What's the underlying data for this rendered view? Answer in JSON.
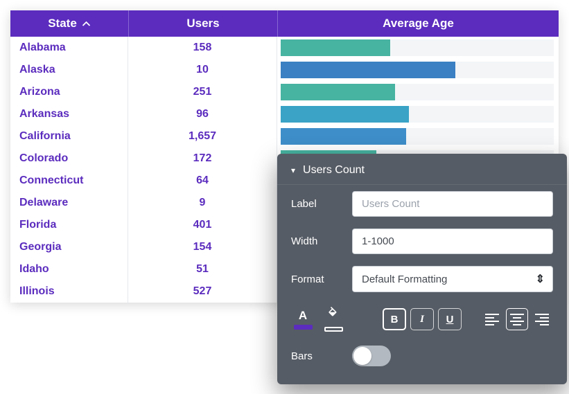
{
  "table": {
    "columns": [
      {
        "label": "State",
        "sorted": "asc"
      },
      {
        "label": "Users"
      },
      {
        "label": "Average Age"
      }
    ],
    "rows": [
      {
        "state": "Alabama",
        "users": "158",
        "bar_pct": 40,
        "bar_color": "#47b3a1"
      },
      {
        "state": "Alaska",
        "users": "10",
        "bar_pct": 64,
        "bar_color": "#3a80c3"
      },
      {
        "state": "Arizona",
        "users": "251",
        "bar_pct": 42,
        "bar_color": "#47b3a1"
      },
      {
        "state": "Arkansas",
        "users": "96",
        "bar_pct": 47,
        "bar_color": "#3aa3c6"
      },
      {
        "state": "California",
        "users": "1,657",
        "bar_pct": 46,
        "bar_color": "#3e8ec9"
      },
      {
        "state": "Colorado",
        "users": "172",
        "bar_pct": 35,
        "bar_color": "#47b3a1"
      },
      {
        "state": "Connecticut",
        "users": "64",
        "bar_pct": null,
        "bar_color": null
      },
      {
        "state": "Delaware",
        "users": "9",
        "bar_pct": null,
        "bar_color": null
      },
      {
        "state": "Florida",
        "users": "401",
        "bar_pct": null,
        "bar_color": null
      },
      {
        "state": "Georgia",
        "users": "154",
        "bar_pct": null,
        "bar_color": null
      },
      {
        "state": "Idaho",
        "users": "51",
        "bar_pct": null,
        "bar_color": null
      },
      {
        "state": "Illinois",
        "users": "527",
        "bar_pct": null,
        "bar_color": null
      }
    ]
  },
  "panel": {
    "title": "Users Count",
    "collapse_caret": "▾",
    "label_field": {
      "label": "Label",
      "placeholder": "Users Count"
    },
    "width_field": {
      "label": "Width",
      "value": "1-1000"
    },
    "format_field": {
      "label": "Format",
      "value": "Default Formatting",
      "updown_glyph": "⇕"
    },
    "toolbar": {
      "text_color_letter": "A",
      "bold_label": "B",
      "italic_label": "I",
      "underline_label": "U"
    },
    "bars_toggle": {
      "label": "Bars",
      "state": "off"
    }
  },
  "colors": {
    "header_purple": "#5b2cbe",
    "row_text_purple": "#5b2cbe",
    "teal_bar": "#47b3a1",
    "blue_bar": "#3a80c3",
    "cyan_bar": "#3aa3c6",
    "bar_track": "#f3f5f7",
    "panel_bg": "#565c65",
    "accent_purple": "#5b2cbe"
  }
}
